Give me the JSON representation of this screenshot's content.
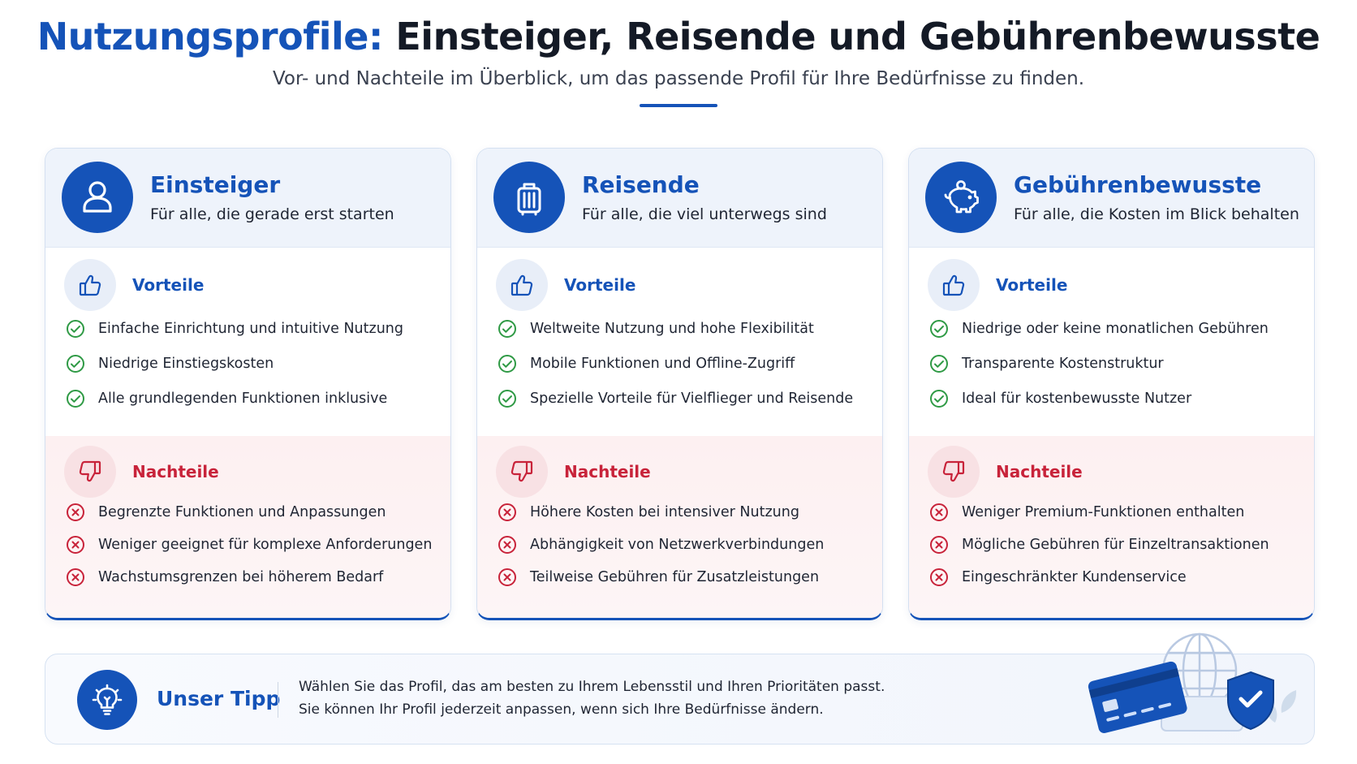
{
  "header": {
    "title_accent": "Nutzungsprofile:",
    "title_rest": "Einsteiger, Reisende und Gebührenbewusste",
    "subtitle": "Vor- und Nachteile im Überblick, um das passende Profil für Ihre Bedürfnisse zu finden."
  },
  "colors": {
    "primary": "#1553b8",
    "positive": "#2f9a45",
    "negative": "#c8233a",
    "pros_background": "#ffffff",
    "cons_background": "#fdf2f3"
  },
  "profiles": [
    {
      "icon": "user-icon",
      "name": "Einsteiger",
      "description": "Für alle, die gerade erst starten",
      "pros_title": "Vorteile",
      "pros": [
        "Einfache Einrichtung und intuitive Nutzung",
        "Niedrige Einstiegskosten",
        "Alle grundlegenden Funktionen inklusive"
      ],
      "cons_title": "Nachteile",
      "cons": [
        "Begrenzte Funktionen und Anpassungen",
        "Weniger geeignet für komplexe Anforderungen",
        "Wachstumsgrenzen bei höherem Bedarf"
      ]
    },
    {
      "icon": "suitcase-icon",
      "name": "Reisende",
      "description": "Für alle, die viel unterwegs sind",
      "pros_title": "Vorteile",
      "pros": [
        "Weltweite Nutzung und hohe Flexibilität",
        "Mobile Funktionen und Offline-Zugriff",
        "Spezielle Vorteile für Vielflieger und Reisende"
      ],
      "cons_title": "Nachteile",
      "cons": [
        "Höhere Kosten bei intensiver Nutzung",
        "Abhängigkeit von Netzwerkverbindungen",
        "Teilweise Gebühren für Zusatzleistungen"
      ]
    },
    {
      "icon": "piggy-bank-icon",
      "name": "Gebührenbewusste",
      "description": "Für alle, die Kosten im Blick behalten",
      "pros_title": "Vorteile",
      "pros": [
        "Niedrige oder keine monatlichen Gebühren",
        "Transparente Kostenstruktur",
        "Ideal für kostenbewusste Nutzer"
      ],
      "cons_title": "Nachteile",
      "cons": [
        "Weniger Premium-Funktionen enthalten",
        "Mögliche Gebühren für Einzeltransaktionen",
        "Eingeschränkter Kundenservice"
      ]
    }
  ],
  "tip": {
    "icon": "lightbulb-icon",
    "title": "Unser Tipp",
    "line1": "Wählen Sie das Profil, das am besten zu Ihrem Lebensstil und Ihren Prioritäten passt.",
    "line2": "Sie können Ihr Profil jederzeit anpassen, wenn sich Ihre Bedürfnisse ändern.",
    "illustration": "credit-card-globe-shield-illustration"
  }
}
